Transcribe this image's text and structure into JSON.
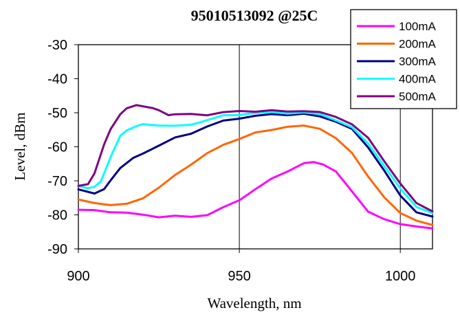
{
  "chart_data": {
    "type": "line",
    "title": "95010513092 @25C",
    "xlabel": "Wavelength, nm",
    "ylabel": "Level, dBm",
    "xlim": [
      900,
      1010
    ],
    "ylim": [
      -90,
      -30
    ],
    "xticks": [
      900,
      950,
      1000
    ],
    "xtick_labels": [
      "900",
      "950",
      "1000"
    ],
    "yticks": [
      -30,
      -40,
      -50,
      -60,
      -70,
      -80,
      -90
    ],
    "ytick_labels": [
      "-30",
      "-40",
      "-50",
      "-60",
      "-70",
      "-80",
      "-90"
    ],
    "grid": "vertical",
    "legend_position": "top-right",
    "series": [
      {
        "name": "100mA",
        "color": "#ff00ff",
        "x": [
          900,
          905,
          910,
          915,
          920,
          925,
          930,
          935,
          940,
          945,
          950,
          955,
          960,
          965,
          970,
          973,
          976,
          980,
          985,
          990,
          995,
          1000,
          1005,
          1010
        ],
        "y": [
          -78.5,
          -78.8,
          -79,
          -79.5,
          -80,
          -80.5,
          -80.5,
          -80.5,
          -80,
          -78,
          -75.5,
          -72.5,
          -69.5,
          -67,
          -65,
          -64.5,
          -65,
          -67.5,
          -73,
          -79,
          -81.5,
          -82.5,
          -83.5,
          -84
        ]
      },
      {
        "name": "200mA",
        "color": "#ff6600",
        "x": [
          900,
          905,
          910,
          915,
          920,
          925,
          930,
          935,
          940,
          945,
          950,
          955,
          960,
          965,
          970,
          975,
          980,
          985,
          990,
          995,
          1000,
          1005,
          1010
        ],
        "y": [
          -75.5,
          -76.5,
          -77,
          -77,
          -75,
          -72,
          -68.5,
          -65,
          -62,
          -59.5,
          -57.5,
          -56,
          -55,
          -54,
          -54,
          -54.5,
          -57.5,
          -62,
          -68.5,
          -75,
          -79.5,
          -81.5,
          -83
        ]
      },
      {
        "name": "300mA",
        "color": "#000080",
        "x": [
          900,
          905,
          908,
          910,
          913,
          917,
          920,
          925,
          930,
          935,
          940,
          945,
          950,
          955,
          960,
          965,
          970,
          975,
          980,
          985,
          990,
          995,
          1000,
          1005,
          1010
        ],
        "y": [
          -72.5,
          -73.5,
          -72.5,
          -70,
          -66,
          -63.5,
          -62,
          -59.5,
          -57.5,
          -56,
          -54,
          -52.5,
          -51.5,
          -51,
          -50.5,
          -50.5,
          -50.5,
          -51,
          -52.5,
          -55,
          -60,
          -67,
          -74.5,
          -79,
          -80.5
        ]
      },
      {
        "name": "400mA",
        "color": "#00ffff",
        "x": [
          900,
          903,
          905,
          907,
          910,
          913,
          915,
          918,
          920,
          925,
          930,
          935,
          940,
          945,
          950,
          955,
          960,
          965,
          970,
          975,
          980,
          985,
          990,
          995,
          1000,
          1005,
          1010
        ],
        "y": [
          -71.5,
          -72,
          -72,
          -70,
          -63,
          -57,
          -55,
          -54,
          -53.5,
          -53.5,
          -54,
          -53.5,
          -52,
          -51,
          -50.5,
          -50,
          -50,
          -50,
          -50,
          -50.5,
          -52,
          -54.5,
          -59,
          -65.5,
          -72.5,
          -77.5,
          -79.5
        ]
      },
      {
        "name": "500mA",
        "color": "#800080",
        "x": [
          900,
          903,
          905,
          908,
          910,
          913,
          915,
          918,
          920,
          923,
          925,
          928,
          930,
          935,
          940,
          945,
          950,
          955,
          960,
          965,
          970,
          975,
          980,
          985,
          990,
          995,
          1000,
          1005,
          1010
        ],
        "y": [
          -71.5,
          -71,
          -68,
          -59,
          -55,
          -50.5,
          -48.5,
          -48,
          -48,
          -48.5,
          -49.5,
          -50.5,
          -50.5,
          -50.5,
          -50.5,
          -50,
          -49.5,
          -49.5,
          -49.5,
          -49.5,
          -49.5,
          -50,
          -51,
          -53.5,
          -57.5,
          -64,
          -71,
          -76.5,
          -79
        ]
      }
    ]
  }
}
